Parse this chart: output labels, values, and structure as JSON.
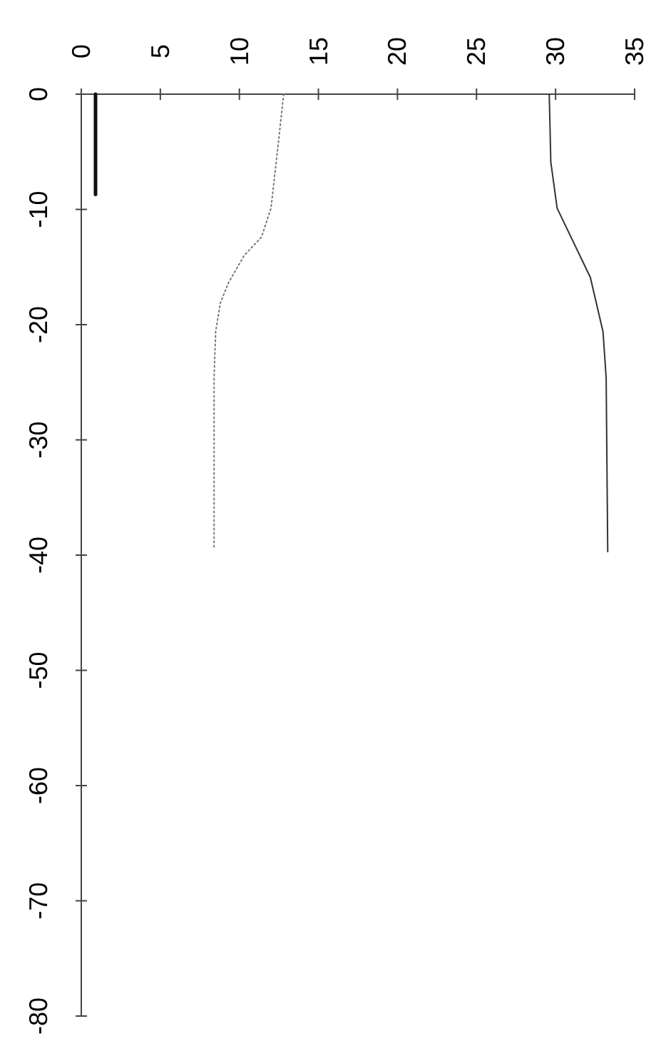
{
  "chart_data": {
    "type": "line",
    "xlim": [
      0,
      35
    ],
    "xticks": [
      0,
      5,
      10,
      15,
      20,
      25,
      30,
      35
    ],
    "ylim": [
      -80,
      0
    ],
    "yticks": [
      0,
      -10,
      -20,
      -30,
      -40,
      -50,
      -60,
      -70,
      -80
    ],
    "grid": false,
    "marker": "none",
    "series": [
      {
        "color": "#111111",
        "line_style": "solid",
        "x": [
          0.9,
          0.9
        ],
        "values": [
          0,
          -8.7
        ]
      },
      {
        "color": "#777777",
        "line_style": "dotted",
        "x": [
          12.8,
          12.5,
          12.0,
          11.4,
          10.3,
          9.3,
          8.8,
          8.5,
          8.4,
          8.4
        ],
        "values": [
          0,
          -3.8,
          -9.9,
          -12.4,
          -14,
          -16.4,
          -18.1,
          -20.6,
          -24.6,
          -39.5
        ]
      },
      {
        "color": "#333333",
        "line_style": "solid",
        "x": [
          29.6,
          29.7,
          30.1,
          32.2,
          33.0,
          33.2,
          33.3
        ],
        "values": [
          0,
          -5.9,
          -9.9,
          -15.9,
          -20.6,
          -24.6,
          -39.7
        ]
      }
    ]
  }
}
